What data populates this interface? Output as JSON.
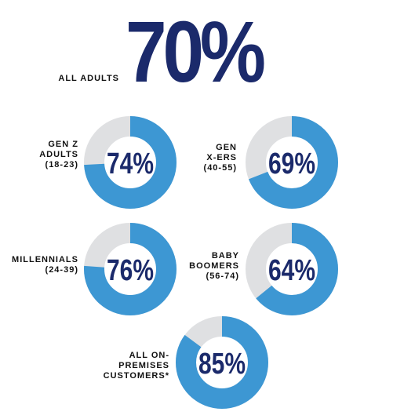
{
  "headline": {
    "value": "70%",
    "label": "ALL ADULTS"
  },
  "colors": {
    "fill": "#3d97d3",
    "remainder": "#dfe0e2",
    "text": "#1b2a6b"
  },
  "chart_data": {
    "type": "pie",
    "categories": [
      "GEN Z ADULTS (18-23)",
      "GEN X-ERS (40-55)",
      "MILLENNIALS (24-39)",
      "BABY BOOMERS (56-74)",
      "ALL ON-PREMISES CUSTOMERS*"
    ],
    "values": [
      74,
      69,
      76,
      64,
      85
    ],
    "labels": [
      "74%",
      "69%",
      "76%",
      "64%",
      "85%"
    ],
    "ylim": [
      0,
      100
    ]
  },
  "items": [
    {
      "label": "GEN Z\nADULTS\n(18-23)",
      "value": 74,
      "pct": "74%"
    },
    {
      "label": "GEN\nX-ERS\n(40-55)",
      "value": 69,
      "pct": "69%"
    },
    {
      "label": "MILLENNIALS\n(24-39)",
      "value": 76,
      "pct": "76%"
    },
    {
      "label": "BABY\nBOOMERS\n(56-74)",
      "value": 64,
      "pct": "64%"
    },
    {
      "label": "ALL ON-\nPREMISES\nCUSTOMERS*",
      "value": 85,
      "pct": "85%"
    }
  ]
}
